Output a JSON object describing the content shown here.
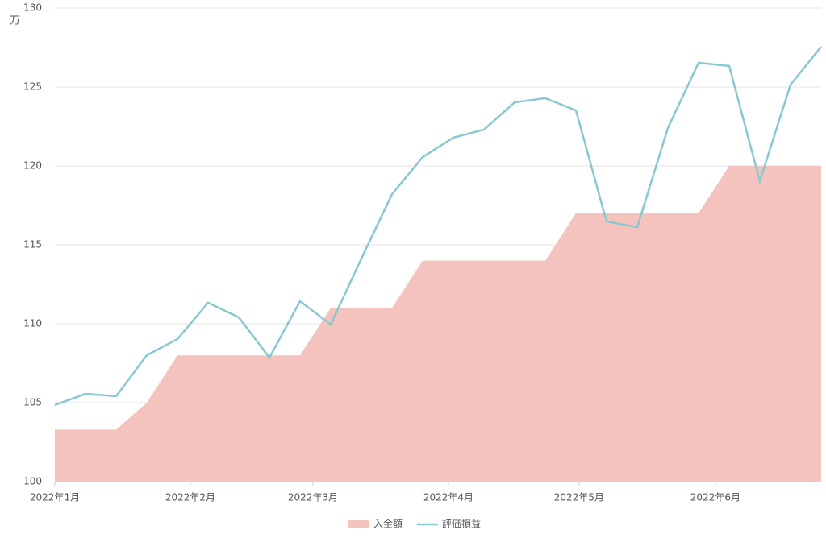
{
  "chart_data": {
    "type": "area-line",
    "y_unit": "万",
    "x": [
      0,
      1,
      2,
      3,
      4,
      5,
      6,
      7,
      8,
      9,
      10,
      11,
      12,
      13,
      14,
      15,
      16,
      17,
      18,
      19,
      20,
      21,
      22,
      23,
      24,
      25
    ],
    "xlim": [
      0,
      25
    ],
    "xticks": [
      {
        "value": 0,
        "label": "2022年1月"
      },
      {
        "value": 4.42,
        "label": "2022年2月"
      },
      {
        "value": 8.42,
        "label": "2022年3月"
      },
      {
        "value": 12.84,
        "label": "2022年4月"
      },
      {
        "value": 17.1,
        "label": "2022年5月"
      },
      {
        "value": 21.55,
        "label": "2022年6月"
      }
    ],
    "ylim": [
      100,
      130
    ],
    "yticks": [
      100,
      105,
      110,
      115,
      120,
      125,
      130
    ],
    "grid": true,
    "legend": "bottom",
    "series": [
      {
        "name": "入金額",
        "kind": "area",
        "color": "#f5c3be",
        "values": [
          103.3,
          103.3,
          103.3,
          105,
          108,
          108,
          108,
          108,
          108,
          111,
          111,
          111,
          114,
          114,
          114,
          114,
          114,
          117,
          117,
          117,
          117,
          117,
          120,
          120,
          120,
          120
        ]
      },
      {
        "name": "評価損益",
        "kind": "line",
        "color": "#8ac8d0",
        "values": [
          104.85,
          105.56,
          105.41,
          108.01,
          109.03,
          111.33,
          110.41,
          107.86,
          111.43,
          109.95,
          114.13,
          118.21,
          120.56,
          121.79,
          122.3,
          124.03,
          124.29,
          123.52,
          116.48,
          116.12,
          122.4,
          126.53,
          126.33,
          119.03,
          125.15,
          127.55
        ]
      }
    ]
  }
}
